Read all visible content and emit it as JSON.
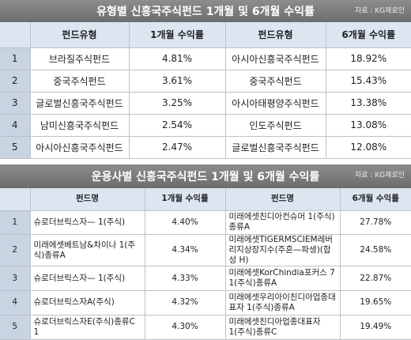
{
  "tables": [
    {
      "title": "유형별 신흥국주식펀드 1개월 및 6개월 수익률",
      "source": "자료 : KG제로인",
      "header": [
        "펀드유형",
        "1개월 수익률",
        "펀드유형",
        "6개월 수익률"
      ],
      "rows": [
        [
          "1",
          "브라질주식펀드",
          "4.81%",
          "아시아신흥국주식펀드",
          "18.92%"
        ],
        [
          "2",
          "중국주식펀드",
          "3.61%",
          "중국주식펀드",
          "15.43%"
        ],
        [
          "3",
          "글로벌신흥국주식펀드",
          "3.25%",
          "아시아태평양주식펀드",
          "13.38%"
        ],
        [
          "4",
          "남미신흥국주식펀드",
          "2.54%",
          "인도주식펀드",
          "13.08%"
        ],
        [
          "5",
          "아시아신흥국주식펀드",
          "2.47%",
          "글로벌신흥국주식펀드",
          "12.08%"
        ]
      ]
    },
    {
      "title": "운용사별 신흥국주식펀드 1개월 및 6개월 수익률",
      "source": "자료 : KG제로인",
      "header": [
        "펀드명",
        "1개월 수익률",
        "펀드명",
        "6개월 수익률"
      ],
      "rows": [
        [
          "1",
          "슈로더브릭스자— 1(주식)",
          "4.40%",
          "미래에셋친디아컨슈머 1(주식)종류A",
          "27.78%"
        ],
        [
          "2",
          "미래에셋베트남&차이나 1(주식)종류A",
          "4.34%",
          "미래에셋TIGERMSCIEM레버리지상장지수(주혼—파생)(합성 H)",
          "24.58%"
        ],
        [
          "3",
          "슈로더브릭스자— 1(주식)",
          "4.33%",
          "미래에셋KorChindia포커스 7 1(주식)종류A",
          "22.87%"
        ],
        [
          "4",
          "슈로더브릭스자A(주식)",
          "4.32%",
          "미래에셋우리아이친디아업종대표자 1(주식)종류A",
          "19.65%"
        ],
        [
          "5",
          "슈로더브릭스자E(주식)종류C 1",
          "4.30%",
          "미래에셋친디아업종대표자 1(주식)종류C",
          "19.49%"
        ]
      ]
    }
  ]
}
